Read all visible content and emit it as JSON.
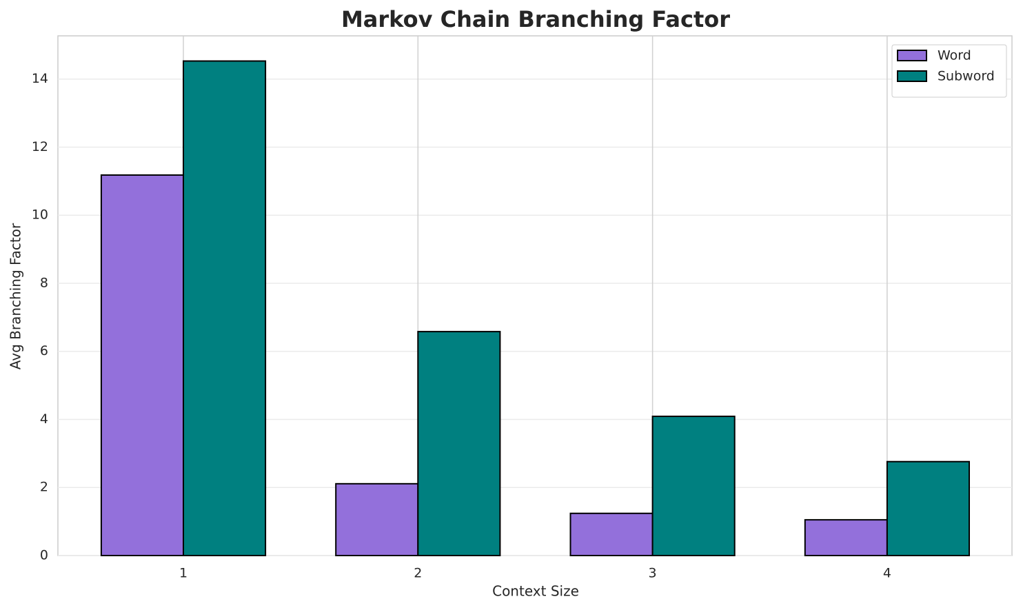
{
  "chart_data": {
    "type": "bar",
    "title": "Markov Chain Branching Factor",
    "x_label": "Context Size",
    "y_label": "Avg Branching Factor",
    "categories": [
      "1",
      "2",
      "3",
      "4"
    ],
    "series": [
      {
        "name": "Word",
        "color": "#9370db",
        "values": [
          11.18,
          2.11,
          1.24,
          1.05
        ]
      },
      {
        "name": "Subword",
        "color": "#008080",
        "values": [
          14.53,
          6.58,
          4.09,
          2.76
        ]
      }
    ],
    "ylim": [
      0,
      15.27
    ],
    "yticks": [
      0,
      2,
      4,
      6,
      8,
      10,
      12,
      14
    ],
    "grid": true,
    "legend": "upper right"
  }
}
